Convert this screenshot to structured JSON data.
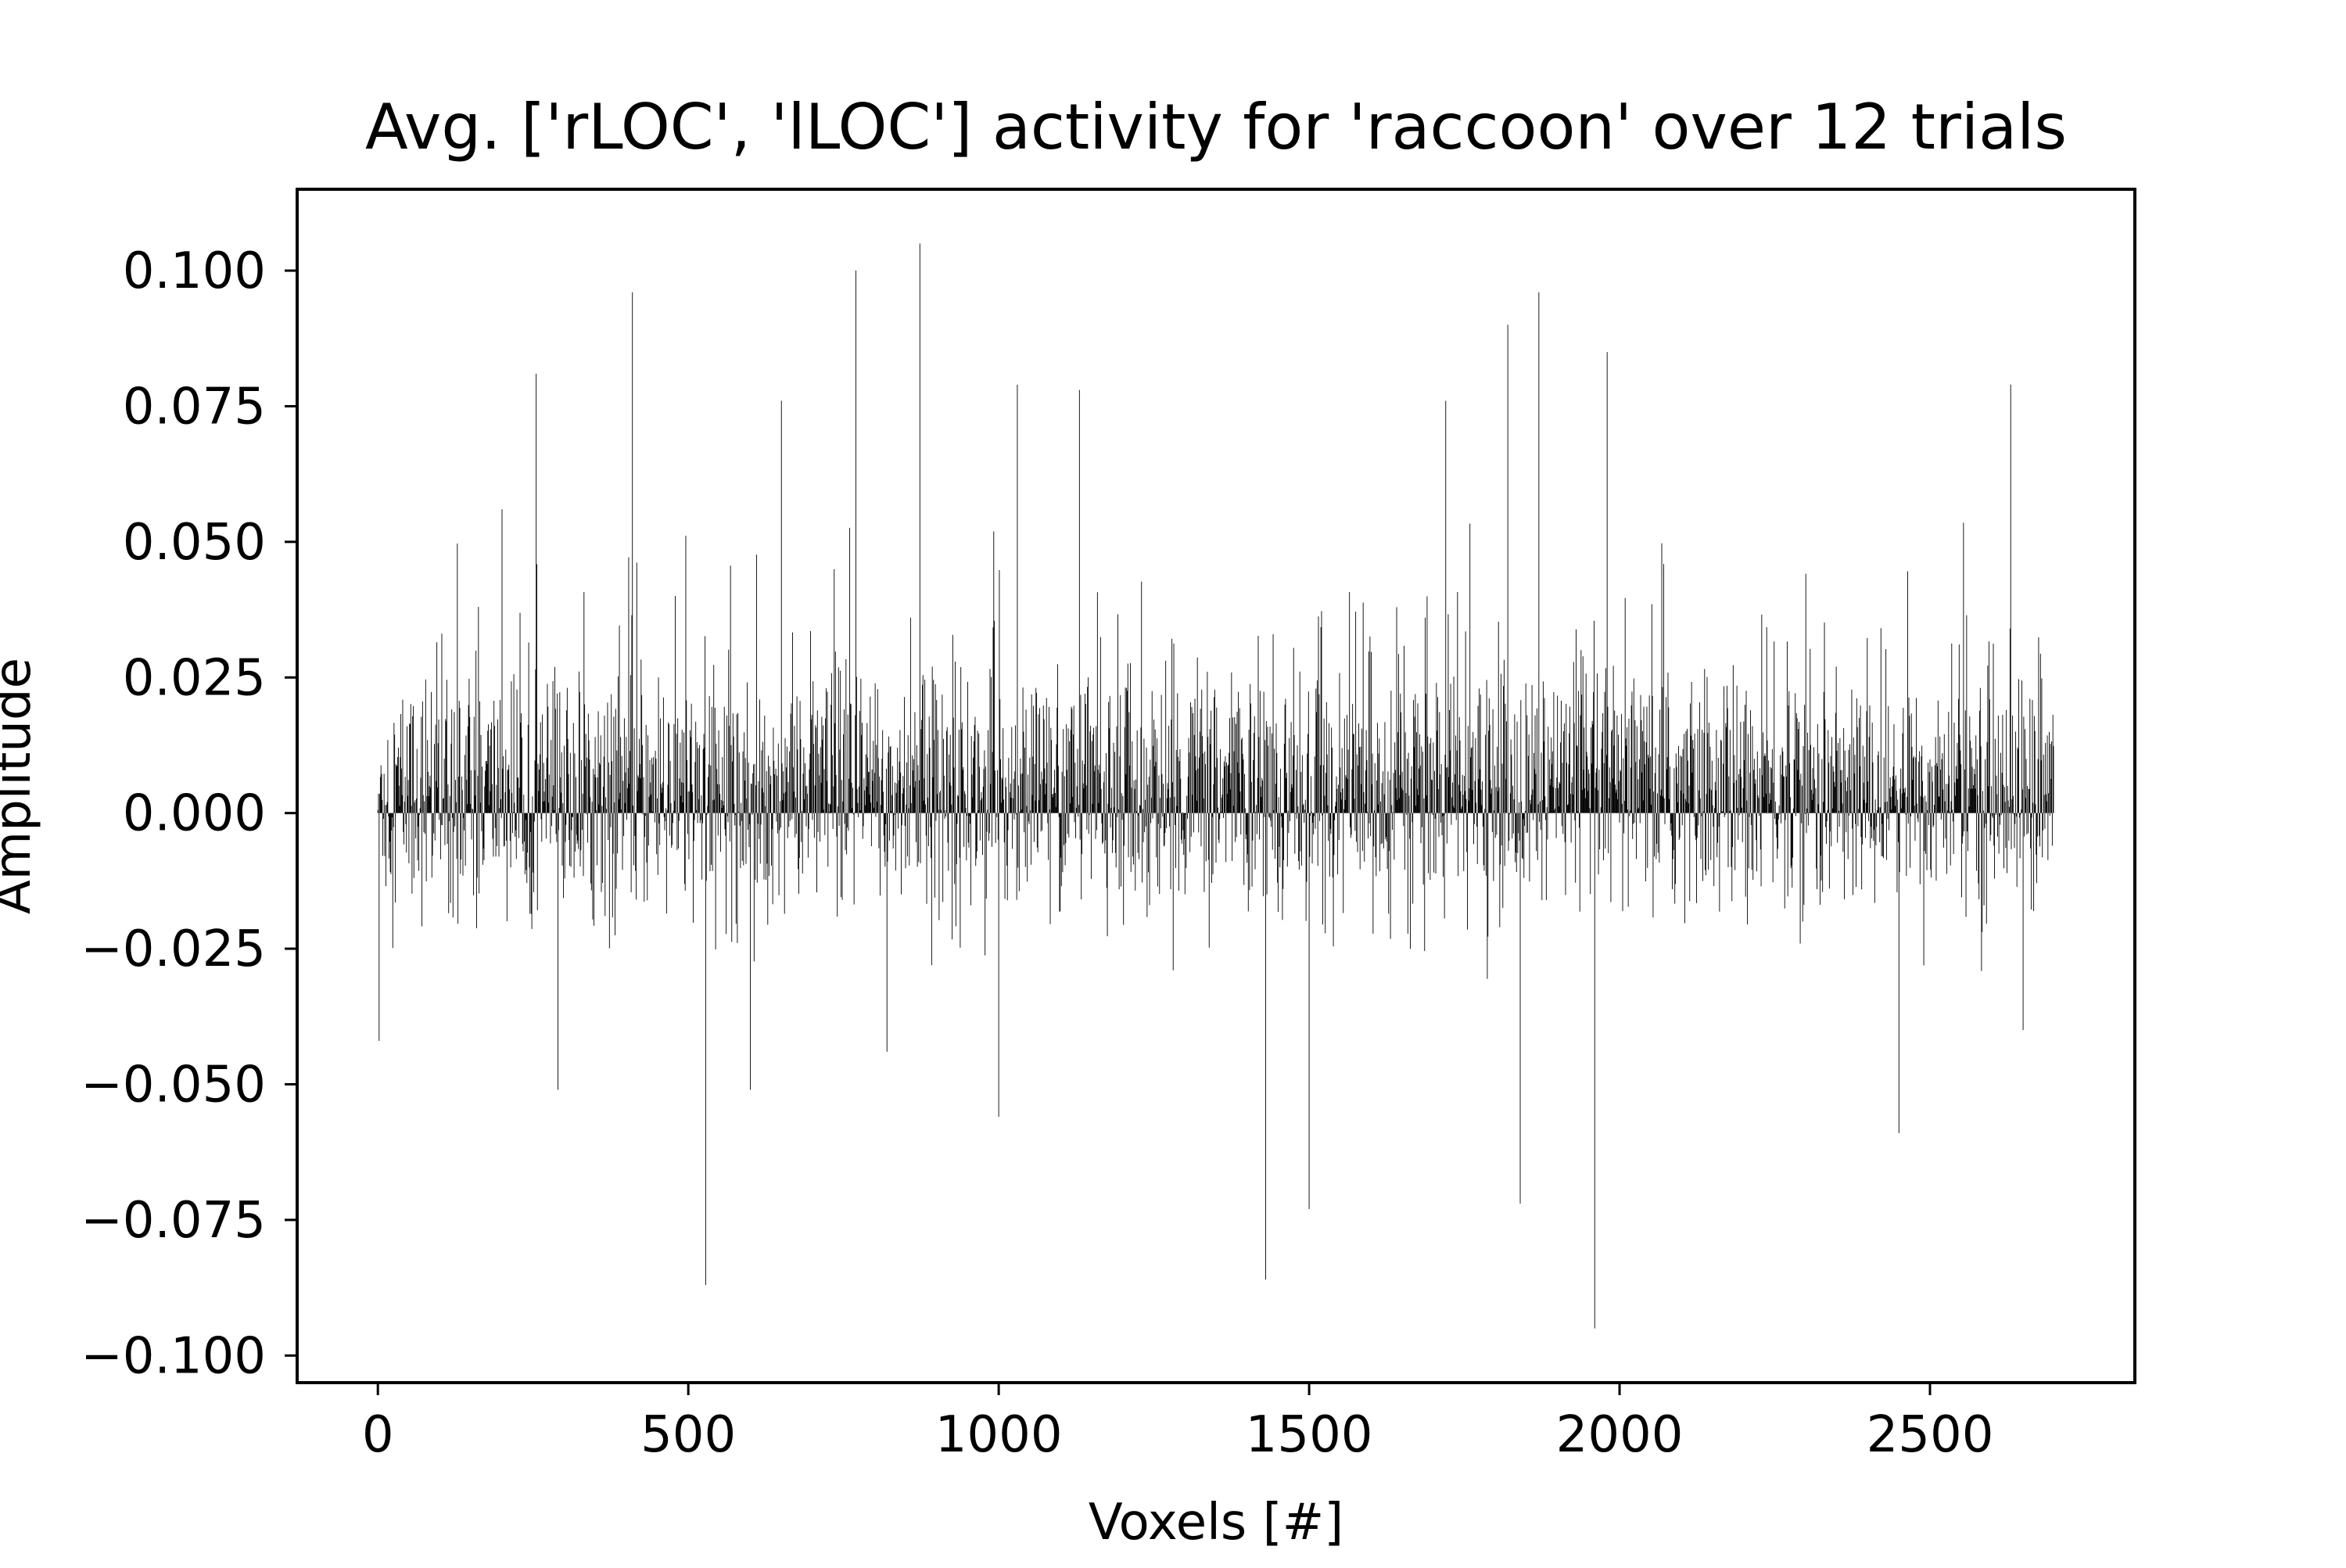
{
  "chart_data": {
    "type": "bar",
    "title": "Avg. ['rLOC', 'lLOC'] activity for 'raccoon' over 12 trials",
    "xlabel": "Voxels [#]",
    "ylabel": "Amplitude",
    "xlim": [
      -130,
      2830
    ],
    "ylim": [
      -0.105,
      0.115
    ],
    "xticks": [
      0,
      500,
      1000,
      1500,
      2000,
      2500
    ],
    "xtick_labels": [
      "0",
      "500",
      "1000",
      "1500",
      "2000",
      "2500"
    ],
    "yticks": [
      0.1,
      0.075,
      0.05,
      0.025,
      0.0,
      -0.025,
      -0.05,
      -0.075,
      -0.1
    ],
    "ytick_labels": [
      "0.100",
      "0.075",
      "0.050",
      "0.025",
      "0.000",
      "−0.025",
      "−0.050",
      "−0.075",
      "−0.100"
    ],
    "grid": false,
    "legend": "none",
    "n_voxels": 2700,
    "bar_color": "#000000",
    "notable_values": [
      {
        "x": 2,
        "y": -0.042
      },
      {
        "x": 200,
        "y": 0.056
      },
      {
        "x": 255,
        "y": 0.081
      },
      {
        "x": 290,
        "y": -0.051
      },
      {
        "x": 410,
        "y": 0.096
      },
      {
        "x": 528,
        "y": -0.087
      },
      {
        "x": 600,
        "y": -0.051
      },
      {
        "x": 650,
        "y": 0.076
      },
      {
        "x": 770,
        "y": 0.1
      },
      {
        "x": 820,
        "y": -0.044
      },
      {
        "x": 873,
        "y": 0.105
      },
      {
        "x": 1000,
        "y": -0.056
      },
      {
        "x": 1030,
        "y": 0.079
      },
      {
        "x": 1130,
        "y": 0.078
      },
      {
        "x": 1430,
        "y": -0.086
      },
      {
        "x": 1500,
        "y": -0.073
      },
      {
        "x": 1720,
        "y": 0.076
      },
      {
        "x": 1820,
        "y": 0.09
      },
      {
        "x": 1840,
        "y": -0.072
      },
      {
        "x": 1870,
        "y": 0.096
      },
      {
        "x": 1960,
        "y": -0.095
      },
      {
        "x": 1980,
        "y": 0.085
      },
      {
        "x": 2450,
        "y": -0.059
      },
      {
        "x": 2630,
        "y": 0.079
      },
      {
        "x": 2650,
        "y": -0.04
      }
    ]
  }
}
